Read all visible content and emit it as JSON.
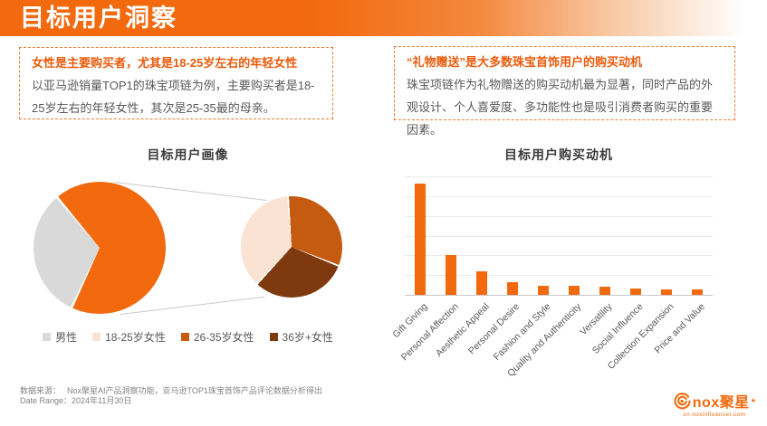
{
  "header": {
    "title": "目标用户洞察"
  },
  "insight_boxes": [
    {
      "title": "女性是主要购买者，尤其是18-25岁左右的年轻女性",
      "body": "以亚马逊销量TOP1的珠宝项链为例，主要购买者是18-25岁左右的年轻女性，其次是25-35最的母亲。"
    },
    {
      "title": "“礼物赠送”是大多数珠宝首饰用户的购买动机",
      "body": "珠宝项链作为礼物赠送的购买动机最为显著，同时产品的外观设计、个人喜爱度、多功能性也是吸引消费者购买的重要因素。"
    }
  ],
  "colors": {
    "brand_orange": "#F2690E",
    "burnt_orange": "#C55A11",
    "dark_brown": "#7E3A0E",
    "pale_peach": "#FAE3D3",
    "gray_slice": "#D9D9D9"
  },
  "chart_data": [
    {
      "type": "pie",
      "subtype": "pie-of-pie",
      "title": "目标用户画像",
      "legend": [
        {
          "label": "男性",
          "color": "#D9D9D9"
        },
        {
          "label": "18-25岁女性",
          "color": "#FAE3D3"
        },
        {
          "label": "26-35岁女性",
          "color": "#C55A11"
        },
        {
          "label": "36岁+女性",
          "color": "#7E3A0E"
        }
      ],
      "main_pie": {
        "slices": [
          {
            "label": "女性（合计，展开至右侧子图）",
            "approx_pct": 68,
            "color": "#F2690E",
            "start_deg": 320,
            "end_deg": 205
          },
          {
            "label": "男性",
            "approx_pct": 32,
            "color": "#D9D9D9",
            "start_deg": 205,
            "end_deg": 320
          }
        ]
      },
      "secondary_pie": {
        "slices": [
          {
            "label": "26-35岁女性",
            "approx_pct": 32,
            "color": "#C55A11",
            "start_deg": 356,
            "end_deg": 112
          },
          {
            "label": "36岁+女性",
            "approx_pct": 31,
            "color": "#7E3A0E",
            "start_deg": 112,
            "end_deg": 223
          },
          {
            "label": "18-25岁女性",
            "approx_pct": 37,
            "color": "#FAE3D3",
            "start_deg": 223,
            "end_deg": 356
          }
        ]
      },
      "data_labels_visible": false,
      "legend_position": "bottom"
    },
    {
      "type": "bar",
      "title": "目标用户购买动机",
      "categories": [
        "Gift Giving",
        "Personal Affection",
        "Aesthetic Appeal",
        "Personal Desire",
        "Fashion and Style",
        "Quality and Authenticity",
        "Versatility",
        "Social Influence",
        "Collection Expansion",
        "Price and Value"
      ],
      "values_pct_of_max": [
        100,
        36,
        21,
        11,
        8,
        8,
        7,
        6,
        5,
        5
      ],
      "bar_color": "#F2690E",
      "y_axis_tick_labels": "none",
      "gridline_intervals": 6,
      "xlabel": "",
      "ylabel": ""
    }
  ],
  "footer": {
    "source": "数据来源：　 Nox聚星AI产品洞察功能，亚马逊TOP1珠宝首饰产品评论数据分析得出",
    "date_range": "Date Range：2024年11月30日"
  },
  "logo": {
    "text": "nox聚星",
    "mark": "★",
    "url": "cn.noxinfluencer.com"
  }
}
